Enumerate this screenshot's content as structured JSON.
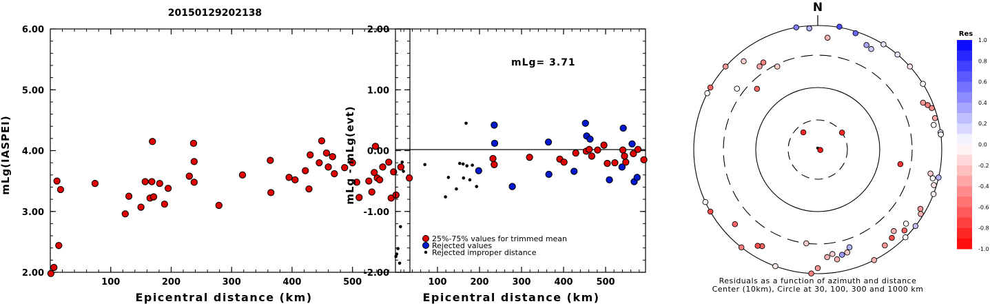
{
  "title": "20150129202138",
  "colors": {
    "trimmed": "#e00000",
    "rejected": "#0018d0",
    "improper": "#000000",
    "scale_pos": "#0000ff",
    "scale_neg": "#ff0000"
  },
  "chart_data": [
    {
      "type": "scatter",
      "id": "left",
      "xlabel": "Epicentral distance (km)",
      "ylabel": "mLg(IASPEI)",
      "xlim": [
        0,
        595
      ],
      "ylim": [
        2.0,
        6.0
      ],
      "xticks": [
        "100",
        "200",
        "300",
        "400",
        "500"
      ],
      "yticks": [
        "2.00",
        "3.00",
        "4.00",
        "5.00",
        "6.00"
      ],
      "series": [
        {
          "points": [
            [
              1,
              1.98
            ],
            [
              6,
              2.08
            ],
            [
              14,
              2.44
            ],
            [
              11,
              3.5
            ],
            [
              17,
              3.36
            ],
            [
              74,
              3.46
            ],
            [
              124,
              2.96
            ],
            [
              130,
              3.25
            ],
            [
              150,
              3.07
            ],
            [
              157,
              3.49
            ],
            [
              165,
              3.22
            ],
            [
              168,
              3.49
            ],
            [
              171,
              3.24
            ],
            [
              169,
              4.15
            ],
            [
              181,
              3.46
            ],
            [
              189,
              3.12
            ],
            [
              195,
              3.38
            ],
            [
              230,
              3.58
            ],
            [
              237,
              4.12
            ],
            [
              238,
              3.82
            ],
            [
              238,
              3.48
            ],
            [
              279,
              3.1
            ],
            [
              318,
              3.6
            ],
            [
              364,
              3.84
            ],
            [
              365,
              3.31
            ],
            [
              395,
              3.56
            ],
            [
              405,
              3.52
            ],
            [
              422,
              3.67
            ],
            [
              428,
              3.37
            ],
            [
              430,
              3.93
            ],
            [
              445,
              3.8
            ],
            [
              449,
              4.16
            ],
            [
              457,
              3.96
            ],
            [
              460,
              3.73
            ],
            [
              467,
              3.9
            ],
            [
              470,
              3.62
            ],
            [
              487,
              3.72
            ],
            [
              500,
              3.8
            ],
            [
              507,
              3.48
            ],
            [
              511,
              3.23
            ],
            [
              527,
              3.5
            ],
            [
              532,
              3.32
            ],
            [
              536,
              3.64
            ],
            [
              538,
              4.07
            ],
            [
              541,
              3.55
            ],
            [
              545,
              3.52
            ],
            [
              550,
              3.73
            ],
            [
              560,
              3.81
            ],
            [
              564,
              3.22
            ],
            [
              568,
              3.65
            ],
            [
              572,
              3.27
            ],
            [
              580,
              3.73
            ],
            [
              594,
              3.55
            ]
          ]
        }
      ]
    },
    {
      "type": "scatter",
      "id": "middle",
      "xlabel": "Epicentral distance (km)",
      "ylabel": "mLg - mLg(evt)",
      "xlim": [
        0,
        595
      ],
      "ylim": [
        -2.0,
        2.0
      ],
      "xticks": [
        "100",
        "200",
        "300",
        "400",
        "500"
      ],
      "yticks": [
        "-2.00",
        "-1.00",
        "0.00",
        "1.00",
        "2.00"
      ],
      "annotation": "mLg= 3.71",
      "legend": [
        {
          "label": "25%-75% values for trimmed mean",
          "kind": "trimmed"
        },
        {
          "label": "Rejected values",
          "kind": "rejected"
        },
        {
          "label": "Rejected improper distance",
          "kind": "improper"
        }
      ],
      "series": [
        {
          "name": "25%-75% values for trimmed mean",
          "kind": "trimmed",
          "points": [
            [
              232,
              -0.13
            ],
            [
              235,
              -0.23
            ],
            [
              319,
              -0.11
            ],
            [
              391,
              -0.14
            ],
            [
              401,
              -0.19
            ],
            [
              429,
              -0.04
            ],
            [
              454,
              -0.01
            ],
            [
              461,
              0.02
            ],
            [
              467,
              -0.09
            ],
            [
              481,
              0.01
            ],
            [
              496,
              0.09
            ],
            [
              504,
              -0.21
            ],
            [
              522,
              -0.2
            ],
            [
              541,
              0.01
            ],
            [
              545,
              -0.09
            ],
            [
              548,
              -0.19
            ],
            [
              566,
              -0.05
            ],
            [
              577,
              0.02
            ],
            [
              591,
              -0.15
            ]
          ]
        },
        {
          "name": "Rejected values",
          "kind": "rejected",
          "points": [
            [
              198,
              -0.33
            ],
            [
              235,
              0.42
            ],
            [
              236,
              0.12
            ],
            [
              278,
              -0.59
            ],
            [
              364,
              0.14
            ],
            [
              365,
              -0.39
            ],
            [
              425,
              -0.34
            ],
            [
              452,
              0.45
            ],
            [
              455,
              0.24
            ],
            [
              463,
              0.19
            ],
            [
              509,
              -0.48
            ],
            [
              539,
              -0.27
            ],
            [
              542,
              0.37
            ],
            [
              563,
              0.11
            ],
            [
              568,
              -0.51
            ],
            [
              575,
              -0.44
            ]
          ]
        },
        {
          "name": "Rejected improper distance",
          "kind": "improper",
          "points": [
            [
              1,
              -1.74
            ],
            [
              3,
              -1.7
            ],
            [
              6,
              -1.61
            ],
            [
              10,
              -1.85
            ],
            [
              12,
              -1.25
            ],
            [
              16,
              -0.19
            ],
            [
              19,
              -0.34
            ],
            [
              70,
              -0.23
            ],
            [
              119,
              -0.76
            ],
            [
              126,
              -0.44
            ],
            [
              145,
              -0.63
            ],
            [
              153,
              -0.21
            ],
            [
              161,
              -0.22
            ],
            [
              162,
              -0.45
            ],
            [
              168,
              0.45
            ],
            [
              170,
              -0.25
            ],
            [
              177,
              -0.48
            ],
            [
              183,
              -0.24
            ],
            [
              193,
              -0.59
            ]
          ]
        }
      ]
    },
    {
      "type": "scatter",
      "id": "polar",
      "north_label": "N",
      "caption_line1": "Residuals as a function of azimuth and distance",
      "caption_line2": "Center (10km), Circle at 30, 100, 300 and 1000 km",
      "colorbar_title": "Res",
      "colorbar_ticks": [
        "1.0",
        "0.8",
        "0.6",
        "0.4",
        "0.2",
        "0.0",
        "-0.2",
        "-0.4",
        "-0.6",
        "-0.8",
        "-1.0"
      ],
      "stations": [
        {
          "az": 355,
          "dist": 2.2,
          "res": 0.0,
          "kind": "dot"
        },
        {
          "az": 320,
          "dist": 23,
          "res": -0.85
        },
        {
          "az": 100,
          "dist": 11,
          "res": -0.9
        },
        {
          "az": 55,
          "dist": 30,
          "res": -0.85
        },
        {
          "az": 315,
          "dist": 225,
          "res": -0.6
        },
        {
          "az": 325,
          "dist": 400,
          "res": -0.35
        },
        {
          "az": 334,
          "dist": 280,
          "res": -0.2
        },
        {
          "az": 307,
          "dist": 395,
          "res": 0.0
        },
        {
          "az": 350,
          "dist": 1000,
          "res": 0.5
        },
        {
          "az": 356,
          "dist": 900,
          "res": 0.3
        },
        {
          "az": 5,
          "dist": 620,
          "res": -0.3
        },
        {
          "az": 10,
          "dist": 1050,
          "res": 0.7
        },
        {
          "az": 18,
          "dist": 930,
          "res": 0.6
        },
        {
          "az": 25,
          "dist": 700,
          "res": 0.35
        },
        {
          "az": 28,
          "dist": 660,
          "res": 0.2
        },
        {
          "az": 32,
          "dist": 1000,
          "res": 0.1
        },
        {
          "az": 40,
          "dist": 1000,
          "res": 0.1
        },
        {
          "az": 48,
          "dist": 1000,
          "res": -0.1
        },
        {
          "az": 58,
          "dist": 1000,
          "res": 0.0
        },
        {
          "az": 66,
          "dist": 700,
          "res": -0.4
        },
        {
          "az": 68,
          "dist": 800,
          "res": -0.5
        },
        {
          "az": 70,
          "dist": 900,
          "res": -0.45
        },
        {
          "az": 75,
          "dist": 900,
          "res": -0.35
        },
        {
          "az": 78,
          "dist": 800,
          "res": 0.0
        },
        {
          "az": 82,
          "dist": 1000,
          "res": 0.1
        },
        {
          "az": 83,
          "dist": 1000,
          "res": 0.0
        },
        {
          "az": 100,
          "dist": 210,
          "res": -0.8
        },
        {
          "az": 102,
          "dist": 700,
          "res": -0.2
        },
        {
          "az": 103,
          "dist": 1000,
          "res": 0.3
        },
        {
          "az": 104,
          "dist": 800,
          "res": 0.0
        },
        {
          "az": 107,
          "dist": 900,
          "res": -0.1
        },
        {
          "az": 111,
          "dist": 1000,
          "res": -0.05
        },
        {
          "az": 120,
          "dist": 800,
          "res": -0.4
        },
        {
          "az": 122,
          "dist": 900,
          "res": -0.3
        },
        {
          "az": 128,
          "dist": 1000,
          "res": 0.25
        },
        {
          "az": 130,
          "dist": 700,
          "res": 0.0
        },
        {
          "az": 133,
          "dist": 800,
          "res": -0.6
        },
        {
          "az": 135,
          "dist": 1000,
          "res": 0.0
        },
        {
          "az": 137,
          "dist": 600,
          "res": -0.3
        },
        {
          "az": 140,
          "dist": 700,
          "res": -0.7
        },
        {
          "az": 145,
          "dist": 750,
          "res": -0.4
        },
        {
          "az": 153,
          "dist": 1000,
          "res": -0.3
        },
        {
          "az": 162,
          "dist": 420,
          "res": 0.3
        },
        {
          "az": 164,
          "dist": 500,
          "res": -0.2
        },
        {
          "az": 167,
          "dist": 520,
          "res": 0.4
        },
        {
          "az": 170,
          "dist": 600,
          "res": -0.3
        },
        {
          "az": 172,
          "dist": 470,
          "res": -0.2
        },
        {
          "az": 175,
          "dist": 520,
          "res": -0.3
        },
        {
          "az": 180,
          "dist": 800,
          "res": -0.4
        },
        {
          "az": 183,
          "dist": 1000,
          "res": -0.5
        },
        {
          "az": 187,
          "dist": 300,
          "res": -0.2
        },
        {
          "az": 200,
          "dist": 1000,
          "res": -0.1
        },
        {
          "az": 210,
          "dist": 600,
          "res": -0.6
        },
        {
          "az": 212,
          "dist": 650,
          "res": -0.7
        },
        {
          "az": 218,
          "dist": 1000,
          "res": -0.5
        },
        {
          "az": 228,
          "dist": 600,
          "res": -0.6
        },
        {
          "az": 240,
          "dist": 1000,
          "res": -0.7
        },
        {
          "az": 245,
          "dist": 1000,
          "res": 0.0
        },
        {
          "az": 297,
          "dist": 1000,
          "res": 0.0
        },
        {
          "az": 300,
          "dist": 1000,
          "res": -0.6
        },
        {
          "az": 312,
          "dist": 1000,
          "res": -0.4
        },
        {
          "az": 320,
          "dist": 700,
          "res": -0.2
        },
        {
          "az": 328,
          "dist": 420,
          "res": -0.5
        }
      ]
    }
  ]
}
